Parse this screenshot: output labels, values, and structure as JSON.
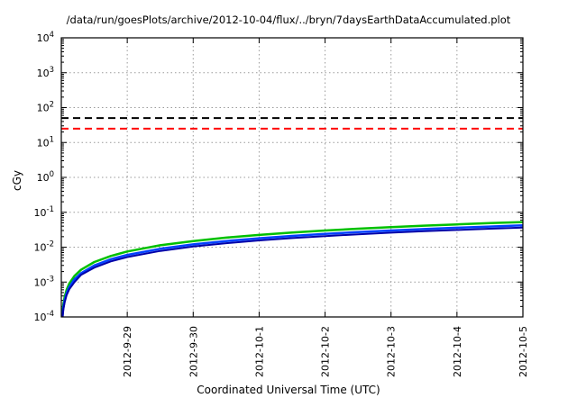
{
  "chart_data": {
    "type": "line",
    "title": "/data/run/goesPlots/archive/2012-10-04/flux/../bryn/7daysEarthDataAccumulated.plot",
    "xlabel": "Coordinated Universal Time (UTC)",
    "ylabel": "cGy",
    "x_axis": {
      "range_days": [
        0,
        7
      ],
      "tick_positions_days": [
        1,
        2,
        3,
        4,
        5,
        6,
        7
      ],
      "tick_labels": [
        "2012-9-29",
        "2012-9-30",
        "2012-10-1",
        "2012-10-2",
        "2012-10-3",
        "2012-10-4",
        "2012-10-5"
      ]
    },
    "y_axis": {
      "scale": "log10",
      "min": 0.0001,
      "max": 10000,
      "tick_exponents": [
        4,
        3,
        2,
        1,
        0,
        -1,
        -2,
        -3,
        -4
      ]
    },
    "grid": {
      "show": true,
      "color": "#9a9a9a",
      "style": "dotted"
    },
    "threshold_lines": [
      {
        "name": "black-dashed-threshold-line",
        "value_cgy": 50,
        "color": "#000000",
        "style": "dashed",
        "width": 2
      },
      {
        "name": "red-dashed-threshold-line",
        "value_cgy": 25,
        "color": "#ff0000",
        "style": "dashed",
        "width": 2
      }
    ],
    "x_days": [
      0.013,
      0.02,
      0.03,
      0.05,
      0.08,
      0.12,
      0.2,
      0.3,
      0.5,
      0.75,
      1,
      1.5,
      2,
      2.5,
      3,
      3.5,
      4,
      4.5,
      5,
      5.5,
      6,
      6.5,
      7
    ],
    "series": [
      {
        "name": "green-accumulated-dose-line",
        "color": "#00c000",
        "width": 2.5,
        "values": [
          0.0001,
          0.00015,
          0.000225,
          0.000375,
          0.0006,
          0.0009,
          0.0015,
          0.00225,
          0.00375,
          0.0056,
          0.0075,
          0.0113,
          0.015,
          0.0188,
          0.0225,
          0.0263,
          0.03,
          0.0338,
          0.0375,
          0.0413,
          0.045,
          0.0488,
          0.0525
        ]
      },
      {
        "name": "blue-accumulated-dose-line",
        "color": "#0040ff",
        "width": 2.5,
        "values": [
          8e-05,
          0.00012,
          0.00018,
          0.0003,
          0.00048,
          0.00072,
          0.0012,
          0.0018,
          0.003,
          0.0045,
          0.006,
          0.009,
          0.012,
          0.015,
          0.018,
          0.021,
          0.024,
          0.027,
          0.03,
          0.033,
          0.036,
          0.039,
          0.042
        ]
      },
      {
        "name": "dark-blue-accumulated-dose-line",
        "color": "#0000a8",
        "width": 2,
        "values": [
          7e-05,
          0.0001,
          0.00016,
          0.00026,
          0.00042,
          0.00062,
          0.001,
          0.0016,
          0.0026,
          0.0039,
          0.0052,
          0.0078,
          0.0104,
          0.013,
          0.0156,
          0.0182,
          0.0208,
          0.0234,
          0.026,
          0.0286,
          0.0312,
          0.0338,
          0.0364
        ]
      }
    ]
  }
}
